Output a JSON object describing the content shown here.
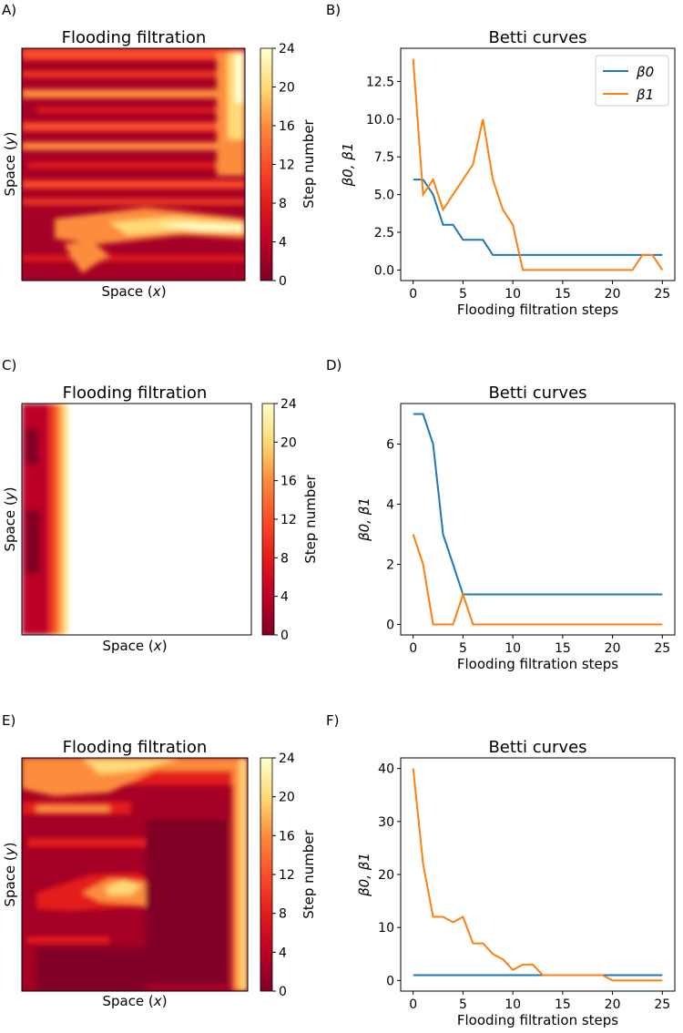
{
  "panels": [
    {
      "label": "A)",
      "title": "Flooding filtration",
      "xlabel_prefix": "Space (",
      "xlabel_var": "x",
      "ylabel_prefix": "Space (",
      "ylabel_var": "y",
      "colorbar_label": "Step number"
    },
    {
      "label": "C)",
      "title": "Flooding filtration",
      "xlabel_prefix": "Space (",
      "xlabel_var": "x",
      "ylabel_prefix": "Space (",
      "ylabel_var": "y",
      "colorbar_label": "Step number"
    },
    {
      "label": "E)",
      "title": "Flooding filtration",
      "xlabel_prefix": "Space (",
      "xlabel_var": "x",
      "ylabel_prefix": "Space (",
      "ylabel_var": "y",
      "colorbar_label": "Step number"
    }
  ],
  "colorbar_ticks": [
    "0",
    "4",
    "8",
    "12",
    "16",
    "20",
    "24"
  ],
  "colors": {
    "beta0": "#1f77b4",
    "beta1": "#ff7f0e",
    "colormap": [
      "#800026",
      "#a50026",
      "#bd0026",
      "#d7301f",
      "#e31a1c",
      "#f03b20",
      "#fc4e2a",
      "#fd8d3c",
      "#feb24c",
      "#fed976",
      "#ffeda0",
      "#ffffcc"
    ]
  },
  "chart_data": [
    {
      "type": "line",
      "label": "B)",
      "title": "Betti curves",
      "xlabel": "Flooding filtration steps",
      "ylabel": "β0,  β1",
      "xlim": [
        -1.25,
        26.25
      ],
      "ylim": [
        -0.7,
        14.7
      ],
      "xticks": [
        0,
        5,
        10,
        15,
        20,
        25
      ],
      "xtick_labels": [
        "0",
        "5",
        "10",
        "15",
        "20",
        "25"
      ],
      "yticks": [
        0,
        2.5,
        5,
        7.5,
        10,
        12.5
      ],
      "ytick_labels": [
        "0.0",
        "2.5",
        "5.0",
        "7.5",
        "10.0",
        "12.5"
      ],
      "legend": {
        "position": "top-right",
        "entries": [
          "β0",
          "β1"
        ]
      },
      "x": [
        0,
        1,
        2,
        3,
        4,
        5,
        6,
        7,
        8,
        9,
        10,
        11,
        12,
        13,
        14,
        15,
        16,
        17,
        18,
        19,
        20,
        21,
        22,
        23,
        24,
        25
      ],
      "series": [
        {
          "name": "β0",
          "values": [
            6,
            6,
            5,
            3,
            3,
            2,
            2,
            2,
            1,
            1,
            1,
            1,
            1,
            1,
            1,
            1,
            1,
            1,
            1,
            1,
            1,
            1,
            1,
            1,
            1,
            1
          ]
        },
        {
          "name": "β1",
          "values": [
            14,
            5,
            6,
            4,
            5,
            6,
            7,
            10,
            6,
            4,
            3,
            0,
            0,
            0,
            0,
            0,
            0,
            0,
            0,
            0,
            0,
            0,
            0,
            1,
            1,
            0
          ]
        }
      ]
    },
    {
      "type": "line",
      "label": "D)",
      "title": "Betti curves",
      "xlabel": "Flooding filtration steps",
      "ylabel": "β0,  β1",
      "xlim": [
        -1.25,
        26.25
      ],
      "ylim": [
        -0.35,
        7.35
      ],
      "xticks": [
        0,
        5,
        10,
        15,
        20,
        25
      ],
      "xtick_labels": [
        "0",
        "5",
        "10",
        "15",
        "20",
        "25"
      ],
      "yticks": [
        0,
        2,
        4,
        6
      ],
      "ytick_labels": [
        "0",
        "2",
        "4",
        "6"
      ],
      "x": [
        0,
        1,
        2,
        3,
        4,
        5,
        6,
        7,
        8,
        9,
        10,
        11,
        12,
        13,
        14,
        15,
        16,
        17,
        18,
        19,
        20,
        21,
        22,
        23,
        24,
        25
      ],
      "series": [
        {
          "name": "β0",
          "values": [
            7,
            7,
            6,
            3,
            2,
            1,
            1,
            1,
            1,
            1,
            1,
            1,
            1,
            1,
            1,
            1,
            1,
            1,
            1,
            1,
            1,
            1,
            1,
            1,
            1,
            1
          ]
        },
        {
          "name": "β1",
          "values": [
            3,
            2,
            0,
            0,
            0,
            1,
            0,
            0,
            0,
            0,
            0,
            0,
            0,
            0,
            0,
            0,
            0,
            0,
            0,
            0,
            0,
            0,
            0,
            0,
            0,
            0
          ]
        }
      ]
    },
    {
      "type": "line",
      "label": "F)",
      "title": "Betti curves",
      "xlabel": "Flooding filtration steps",
      "ylabel": "β0,  β1",
      "xlim": [
        -1.25,
        26.25
      ],
      "ylim": [
        -2,
        42
      ],
      "xticks": [
        0,
        5,
        10,
        15,
        20,
        25
      ],
      "xtick_labels": [
        "0",
        "5",
        "10",
        "15",
        "20",
        "25"
      ],
      "yticks": [
        0,
        10,
        20,
        30,
        40
      ],
      "ytick_labels": [
        "0",
        "10",
        "20",
        "30",
        "40"
      ],
      "x": [
        0,
        1,
        2,
        3,
        4,
        5,
        6,
        7,
        8,
        9,
        10,
        11,
        12,
        13,
        14,
        15,
        16,
        17,
        18,
        19,
        20,
        21,
        22,
        23,
        24,
        25
      ],
      "series": [
        {
          "name": "β0",
          "values": [
            1,
            1,
            1,
            1,
            1,
            1,
            1,
            1,
            1,
            1,
            1,
            1,
            1,
            1,
            1,
            1,
            1,
            1,
            1,
            1,
            1,
            1,
            1,
            1,
            1,
            1
          ]
        },
        {
          "name": "β1",
          "values": [
            40,
            22,
            12,
            12,
            11,
            12,
            7,
            7,
            5,
            4,
            2,
            3,
            3,
            1,
            1,
            1,
            1,
            1,
            1,
            1,
            0,
            0,
            0,
            0,
            0,
            0
          ]
        }
      ]
    }
  ]
}
